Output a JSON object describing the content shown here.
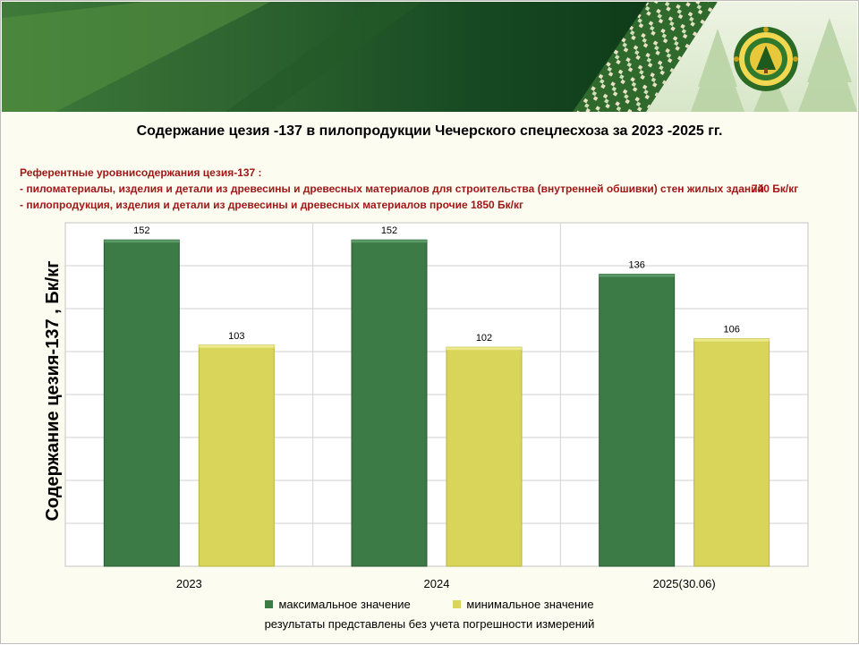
{
  "title": "Содержание цезия -137 в пилопродукции Чечерского спецлесхоза за 2023  -2025 гг.",
  "reference_levels": {
    "heading": "Референтные уровнисодержания цезия-137 :",
    "line1": "- пиломатериалы, изделия и детали из древесины и древесных материалов для строительства (внутренней обшивки) стен жилых зданий",
    "line1_value": "740 Бк/кг",
    "line2": "- пилопродукция, изделия и детали из древесины и древесных материалов прочие 1850 Бк/кг"
  },
  "chart_data": {
    "type": "bar",
    "title": "Содержание цезия -137 в пилопродукции Чечерского спецлесхоза за 2023  -2025 гг.",
    "ylabel": "Содержание цезия-137 , Бк/кг",
    "xlabel": "",
    "categories": [
      "2023",
      "2024",
      "2025(30.06)"
    ],
    "series": [
      {
        "name": "максимальное значение",
        "values": [
          152,
          152,
          136
        ],
        "color": "#3c7a46"
      },
      {
        "name": "минимальное значение",
        "values": [
          103,
          102,
          106
        ],
        "color": "#d9d45a"
      }
    ],
    "ylim": [
      0,
      160
    ],
    "grid": true,
    "data_labels": true,
    "legend": "bottom"
  },
  "legend": {
    "max_label": "максимальное значение",
    "min_label": "минимальное значение"
  },
  "footnote": "результаты представлены без учета погрешности измерений",
  "colors": {
    "banner_dark": "#12401c",
    "banner_mid": "#2f6b2e",
    "ref_text": "#a01818",
    "bar_max": "#3c7a46",
    "bar_min": "#d9d45a"
  },
  "icons": {
    "emblem": "forestry-emblem",
    "ornament": "belarusian-ornament",
    "trees": "spruce-trees"
  }
}
